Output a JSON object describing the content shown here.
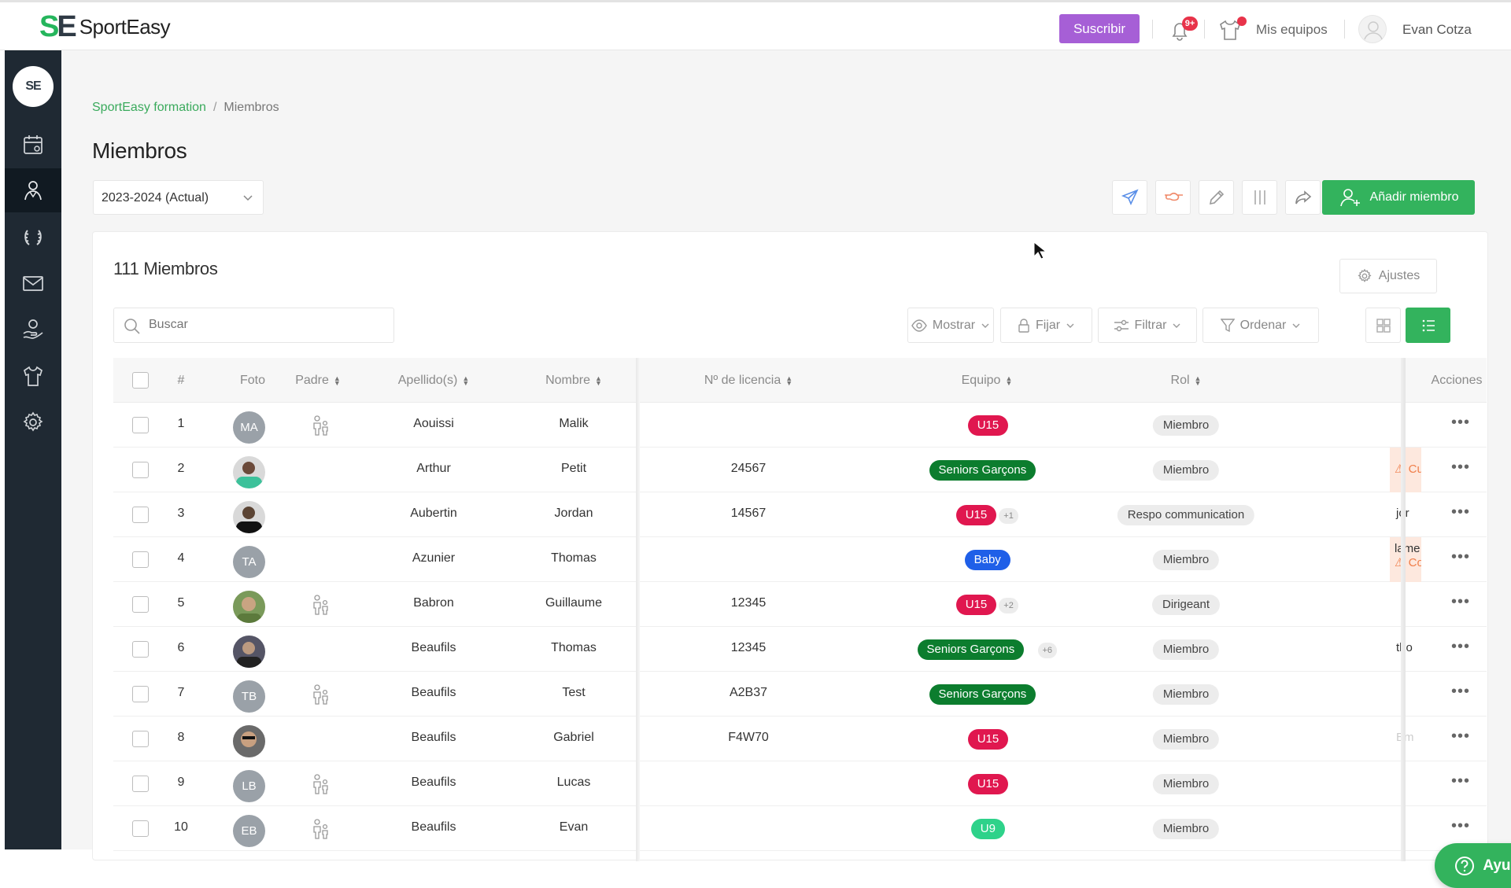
{
  "app": {
    "logo_mark": "SE",
    "name": "SportEasy"
  },
  "topbar": {
    "subscribe_label": "Suscribir",
    "notification_badge": "9+",
    "teams_label": "Mis equipos",
    "user_name": "Evan Cotza"
  },
  "sidebar": {
    "logo": "SE",
    "items": [
      {
        "icon": "calendar-icon"
      },
      {
        "icon": "members-icon",
        "active": true
      },
      {
        "icon": "trophy-icon"
      },
      {
        "icon": "mail-icon"
      },
      {
        "icon": "hand-coin-icon"
      },
      {
        "icon": "jersey-icon"
      },
      {
        "icon": "gear-icon"
      }
    ]
  },
  "breadcrumb": {
    "parent": "SportEasy formation",
    "separator": "/",
    "current": "Miembros"
  },
  "page": {
    "title": "Miembros",
    "season_select": "2023-2024 (Actual)",
    "add_member_label": "Añadir miembro",
    "members_count": "111 Miembros",
    "settings_label": "Ajustes",
    "search_placeholder": "Buscar",
    "options": {
      "show": "Mostrar",
      "pin": "Fijar",
      "filter": "Filtrar",
      "sort": "Ordenar"
    }
  },
  "colors": {
    "brand_green": "#33b35d",
    "subscribe_purple": "#a65fd6",
    "sidebar": "#1f2933",
    "u15": "#e0174f",
    "seniors": "#0c7d2e",
    "baby": "#1f5fe8",
    "u9": "#2ed28a"
  },
  "table": {
    "headers": {
      "num": "#",
      "photo": "Foto",
      "parent": "Padre",
      "lastname": "Apellido(s)",
      "firstname": "Nombre",
      "license": "Nº de licencia",
      "team": "Equipo",
      "role": "Rol",
      "actions": "Acciones"
    },
    "rows": [
      {
        "num": "1",
        "initials": "MA",
        "photo": false,
        "parent": true,
        "lastname": "Aouissi",
        "firstname": "Malik",
        "license": "",
        "team": "U15",
        "team_color": "#e0174f",
        "more": "",
        "role": "Miembro",
        "extra": "",
        "extra_type": ""
      },
      {
        "num": "2",
        "initials": "",
        "photo": true,
        "parent": false,
        "lastname": "Arthur",
        "firstname": "Petit",
        "license": "24567",
        "team": "Seniors Garçons",
        "team_color": "#0c7d2e",
        "more": "",
        "role": "Miembro",
        "extra": "Cu",
        "extra_type": "warn"
      },
      {
        "num": "3",
        "initials": "",
        "photo": true,
        "parent": false,
        "lastname": "Aubertin",
        "firstname": "Jordan",
        "license": "14567",
        "team": "U15",
        "team_color": "#e0174f",
        "more": "+1",
        "role": "Respo communication",
        "extra": "jor",
        "extra_type": "text"
      },
      {
        "num": "4",
        "initials": "TA",
        "photo": false,
        "parent": false,
        "lastname": "Azunier",
        "firstname": "Thomas",
        "license": "",
        "team": "Baby",
        "team_color": "#1f5fe8",
        "more": "",
        "role": "Miembro",
        "extra": "lame",
        "extra2": "Co",
        "extra_type": "warn2"
      },
      {
        "num": "5",
        "initials": "",
        "photo": true,
        "parent": true,
        "lastname": "Babron",
        "firstname": "Guillaume",
        "license": "12345",
        "team": "U15",
        "team_color": "#e0174f",
        "more": "+2",
        "role": "Dirigeant",
        "extra": "",
        "extra_type": ""
      },
      {
        "num": "6",
        "initials": "",
        "photo": true,
        "parent": false,
        "lastname": "Beaufils",
        "firstname": "Thomas",
        "license": "12345",
        "team": "Seniors Garçons",
        "team_color": "#0c7d2e",
        "more": "+6",
        "role": "Miembro",
        "extra": "tho",
        "extra_type": "text"
      },
      {
        "num": "7",
        "initials": "TB",
        "photo": false,
        "parent": true,
        "lastname": "Beaufils",
        "firstname": "Test",
        "license": "A2B37",
        "team": "Seniors Garçons",
        "team_color": "#0c7d2e",
        "more": "",
        "role": "Miembro",
        "extra": "",
        "extra_type": ""
      },
      {
        "num": "8",
        "initials": "",
        "photo": true,
        "parent": false,
        "lastname": "Beaufils",
        "firstname": "Gabriel",
        "license": "F4W70",
        "team": "U15",
        "team_color": "#e0174f",
        "more": "",
        "role": "Miembro",
        "extra": "Em",
        "extra_type": "faded"
      },
      {
        "num": "9",
        "initials": "LB",
        "photo": false,
        "parent": true,
        "lastname": "Beaufils",
        "firstname": "Lucas",
        "license": "",
        "team": "U15",
        "team_color": "#e0174f",
        "more": "",
        "role": "Miembro",
        "extra": "",
        "extra_type": ""
      },
      {
        "num": "10",
        "initials": "EB",
        "photo": false,
        "parent": true,
        "lastname": "Beaufils",
        "firstname": "Evan",
        "license": "",
        "team": "U9",
        "team_color": "#2ed28a",
        "more": "",
        "role": "Miembro",
        "extra": "",
        "extra_type": ""
      }
    ]
  },
  "help": {
    "label": "Ayuda"
  }
}
